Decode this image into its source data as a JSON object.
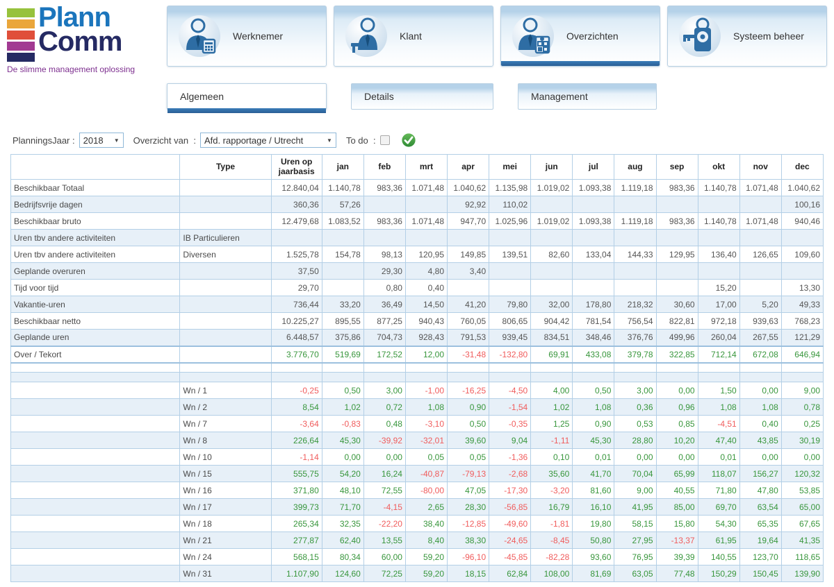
{
  "logo": {
    "line1": "Plann",
    "line2": "Comm",
    "tagline": "De slimme management oplossing",
    "bar_colors": [
      "#97c23c",
      "#eaa63b",
      "#e04f3a",
      "#a23a92",
      "#252a63"
    ]
  },
  "nav": {
    "items": [
      {
        "label": "Werknemer",
        "icon": "employee-icon",
        "active": false
      },
      {
        "label": "Klant",
        "icon": "customer-icon",
        "active": false
      },
      {
        "label": "Overzichten",
        "icon": "overviews-icon",
        "active": true
      },
      {
        "label": "Systeem beheer",
        "icon": "system-admin-icon",
        "active": false
      }
    ]
  },
  "subtabs": [
    {
      "label": "Algemeen",
      "active": true
    },
    {
      "label": "Details",
      "active": false
    },
    {
      "label": "Management",
      "active": false
    }
  ],
  "filters": {
    "year_label": "PlanningsJaar :",
    "year_value": "2018",
    "overview_label": "Overzicht van  :",
    "overview_value": "Afd. rapportage / Utrecht",
    "todo_label": "To do  :",
    "todo_checked": false
  },
  "colors": {
    "accent": "#2f6fad",
    "positive": "#38963c",
    "negative": "#f05c5c",
    "table_border": "#b3cfe6",
    "alt_row": "#e7f0f8",
    "go_button": "#43a047"
  },
  "table": {
    "headers": [
      "",
      "Type",
      "Uren op\njaarbasis",
      "jan",
      "feb",
      "mrt",
      "apr",
      "mei",
      "jun",
      "jul",
      "aug",
      "sep",
      "okt",
      "nov",
      "dec"
    ],
    "summary_rows": [
      {
        "label": "Beschikbaar Totaal",
        "type": "",
        "colored": false,
        "values": [
          "12.840,04",
          "1.140,78",
          "983,36",
          "1.071,48",
          "1.040,62",
          "1.135,98",
          "1.019,02",
          "1.093,38",
          "1.119,18",
          "983,36",
          "1.140,78",
          "1.071,48",
          "1.040,62"
        ]
      },
      {
        "label": "Bedrijfsvrije dagen",
        "type": "",
        "colored": false,
        "values": [
          "360,36",
          "57,26",
          "",
          "",
          "92,92",
          "110,02",
          "",
          "",
          "",
          "",
          "",
          "",
          "100,16"
        ]
      },
      {
        "label": "Beschikbaar bruto",
        "type": "",
        "colored": false,
        "values": [
          "12.479,68",
          "1.083,52",
          "983,36",
          "1.071,48",
          "947,70",
          "1.025,96",
          "1.019,02",
          "1.093,38",
          "1.119,18",
          "983,36",
          "1.140,78",
          "1.071,48",
          "940,46"
        ]
      },
      {
        "label": "Uren tbv andere activiteiten",
        "type": "IB Particulieren",
        "colored": false,
        "values": [
          "",
          "",
          "",
          "",
          "",
          "",
          "",
          "",
          "",
          "",
          "",
          "",
          ""
        ]
      },
      {
        "label": "Uren tbv andere activiteiten",
        "type": "Diversen",
        "colored": false,
        "values": [
          "1.525,78",
          "154,78",
          "98,13",
          "120,95",
          "149,85",
          "139,51",
          "82,60",
          "133,04",
          "144,33",
          "129,95",
          "136,40",
          "126,65",
          "109,60"
        ]
      },
      {
        "label": "Geplande overuren",
        "type": "",
        "colored": false,
        "values": [
          "37,50",
          "",
          "29,30",
          "4,80",
          "3,40",
          "",
          "",
          "",
          "",
          "",
          "",
          "",
          ""
        ]
      },
      {
        "label": "Tijd voor tijd",
        "type": "",
        "colored": false,
        "values": [
          "29,70",
          "",
          "0,80",
          "0,40",
          "",
          "",
          "",
          "",
          "",
          "",
          "15,20",
          "",
          "13,30"
        ]
      },
      {
        "label": "Vakantie-uren",
        "type": "",
        "colored": false,
        "values": [
          "736,44",
          "33,20",
          "36,49",
          "14,50",
          "41,20",
          "79,80",
          "32,00",
          "178,80",
          "218,32",
          "30,60",
          "17,00",
          "5,20",
          "49,33"
        ]
      },
      {
        "label": "Beschikbaar netto",
        "type": "",
        "colored": false,
        "values": [
          "10.225,27",
          "895,55",
          "877,25",
          "940,43",
          "760,05",
          "806,65",
          "904,42",
          "781,54",
          "756,54",
          "822,81",
          "972,18",
          "939,63",
          "768,23"
        ]
      },
      {
        "label": "Geplande uren",
        "type": "",
        "colored": false,
        "values": [
          "6.448,57",
          "375,86",
          "704,73",
          "928,43",
          "791,53",
          "939,45",
          "834,51",
          "348,46",
          "376,76",
          "499,96",
          "260,04",
          "267,55",
          "121,29"
        ]
      },
      {
        "label": "Over / Tekort",
        "type": "",
        "colored": true,
        "thick_top": true,
        "thick_bottom": true,
        "values": [
          "3.776,70",
          "519,69",
          "172,52",
          "12,00",
          "-31,48",
          "-132,80",
          "69,91",
          "433,08",
          "379,78",
          "322,85",
          "712,14",
          "672,08",
          "646,94"
        ]
      }
    ],
    "spacer_rows": 2,
    "employee_rows": [
      {
        "type": "Wn / 1",
        "values": [
          "-0,25",
          "0,50",
          "3,00",
          "-1,00",
          "-16,25",
          "-4,50",
          "4,00",
          "0,50",
          "3,00",
          "0,00",
          "1,50",
          "0,00",
          "9,00"
        ]
      },
      {
        "type": "Wn / 2",
        "values": [
          "8,54",
          "1,02",
          "0,72",
          "1,08",
          "0,90",
          "-1,54",
          "1,02",
          "1,08",
          "0,36",
          "0,96",
          "1,08",
          "1,08",
          "0,78"
        ]
      },
      {
        "type": "Wn / 7",
        "values": [
          "-3,64",
          "-0,83",
          "0,48",
          "-3,10",
          "0,50",
          "-0,35",
          "1,25",
          "0,90",
          "0,53",
          "0,85",
          "-4,51",
          "0,40",
          "0,25"
        ]
      },
      {
        "type": "Wn / 8",
        "values": [
          "226,64",
          "45,30",
          "-39,92",
          "-32,01",
          "39,60",
          "9,04",
          "-1,11",
          "45,30",
          "28,80",
          "10,20",
          "47,40",
          "43,85",
          "30,19"
        ]
      },
      {
        "type": "Wn / 10",
        "values": [
          "-1,14",
          "0,00",
          "0,00",
          "0,05",
          "0,05",
          "-1,36",
          "0,10",
          "0,01",
          "0,00",
          "0,00",
          "0,01",
          "0,00",
          "0,00"
        ]
      },
      {
        "type": "Wn / 15",
        "values": [
          "555,75",
          "54,20",
          "16,24",
          "-40,87",
          "-79,13",
          "-2,68",
          "35,60",
          "41,70",
          "70,04",
          "65,99",
          "118,07",
          "156,27",
          "120,32"
        ]
      },
      {
        "type": "Wn / 16",
        "values": [
          "371,80",
          "48,10",
          "72,55",
          "-80,00",
          "47,05",
          "-17,30",
          "-3,20",
          "81,60",
          "9,00",
          "40,55",
          "71,80",
          "47,80",
          "53,85"
        ]
      },
      {
        "type": "Wn / 17",
        "values": [
          "399,73",
          "71,70",
          "-4,15",
          "2,65",
          "28,30",
          "-56,85",
          "16,79",
          "16,10",
          "41,95",
          "85,00",
          "69,70",
          "63,54",
          "65,00"
        ]
      },
      {
        "type": "Wn / 18",
        "values": [
          "265,34",
          "32,35",
          "-22,20",
          "38,40",
          "-12,85",
          "-49,60",
          "-1,81",
          "19,80",
          "58,15",
          "15,80",
          "54,30",
          "65,35",
          "67,65"
        ]
      },
      {
        "type": "Wn / 21",
        "values": [
          "277,87",
          "62,40",
          "13,55",
          "8,40",
          "38,30",
          "-24,65",
          "-8,45",
          "50,80",
          "27,95",
          "-13,37",
          "61,95",
          "19,64",
          "41,35"
        ]
      },
      {
        "type": "Wn / 24",
        "values": [
          "568,15",
          "80,34",
          "60,00",
          "59,20",
          "-96,10",
          "-45,85",
          "-82,28",
          "93,60",
          "76,95",
          "39,39",
          "140,55",
          "123,70",
          "118,65"
        ]
      },
      {
        "type": "Wn / 31",
        "values": [
          "1.107,90",
          "124,60",
          "72,25",
          "59,20",
          "18,15",
          "62,84",
          "108,00",
          "81,69",
          "63,05",
          "77,48",
          "150,29",
          "150,45",
          "139,90"
        ]
      }
    ]
  }
}
